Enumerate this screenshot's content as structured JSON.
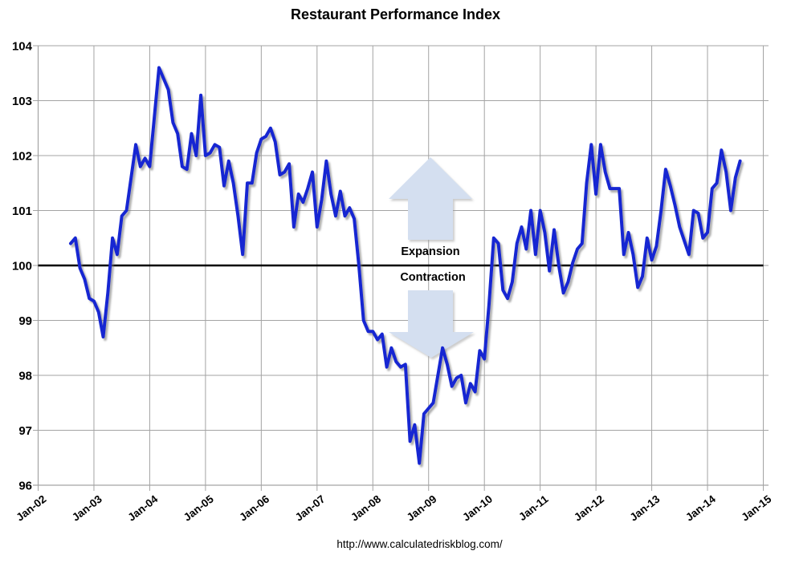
{
  "chart_data": {
    "type": "line",
    "title": "Restaurant Performance Index",
    "source_url_text": "http://www.calculatedriskblog.com/",
    "x_tick_labels": [
      "Jan-02",
      "Jan-03",
      "Jan-04",
      "Jan-05",
      "Jan-06",
      "Jan-07",
      "Jan-08",
      "Jan-09",
      "Jan-10",
      "Jan-11",
      "Jan-12",
      "Jan-13",
      "Jan-14",
      "Jan-15"
    ],
    "y_ticks": [
      96,
      97,
      98,
      99,
      100,
      101,
      102,
      103,
      104
    ],
    "ylim": [
      96,
      104
    ],
    "grid": true,
    "legend": "none",
    "reference_line": {
      "value": 100,
      "label_above": "Expansion",
      "label_below": "Contraction"
    },
    "series": [
      {
        "name": "Restaurant Performance Index",
        "start": "2002-08",
        "frequency": "monthly",
        "values": [
          100.4,
          100.5,
          99.95,
          99.75,
          99.4,
          99.35,
          99.15,
          98.7,
          99.5,
          100.5,
          100.2,
          100.9,
          101.0,
          101.6,
          102.2,
          101.8,
          101.95,
          101.8,
          102.7,
          103.6,
          103.4,
          103.2,
          102.6,
          102.4,
          101.8,
          101.75,
          102.4,
          102.0,
          103.1,
          102.0,
          102.05,
          102.2,
          102.15,
          101.45,
          101.9,
          101.5,
          100.9,
          100.2,
          101.5,
          101.5,
          102.05,
          102.3,
          102.35,
          102.5,
          102.25,
          101.65,
          101.7,
          101.85,
          100.7,
          101.3,
          101.15,
          101.4,
          101.7,
          100.7,
          101.2,
          101.9,
          101.3,
          100.9,
          101.35,
          100.9,
          101.05,
          100.85,
          100.0,
          99.0,
          98.8,
          98.8,
          98.65,
          98.75,
          98.15,
          98.5,
          98.25,
          98.15,
          98.2,
          96.8,
          97.1,
          96.4,
          97.3,
          97.4,
          97.5,
          98.0,
          98.5,
          98.2,
          97.8,
          97.95,
          98.0,
          97.5,
          97.85,
          97.7,
          98.45,
          98.3,
          99.3,
          100.5,
          100.4,
          99.55,
          99.4,
          99.7,
          100.4,
          100.7,
          100.3,
          101.0,
          100.2,
          101.0,
          100.6,
          99.9,
          100.65,
          100.0,
          99.5,
          99.7,
          100.05,
          100.3,
          100.4,
          101.5,
          102.2,
          101.3,
          102.2,
          101.7,
          101.4,
          101.4,
          101.4,
          100.2,
          100.6,
          100.2,
          99.6,
          99.8,
          100.5,
          100.1,
          100.35,
          101.0,
          101.75,
          101.45,
          101.1,
          100.7,
          100.45,
          100.2,
          101.0,
          100.95,
          100.5,
          100.6,
          101.4,
          101.5,
          102.1,
          101.7,
          101.0,
          101.6,
          101.9
        ]
      }
    ],
    "colors": {
      "line": "#1527d2",
      "arrow_fill": "#d4dff0",
      "gridline": "#a3a3a3",
      "reference_line": "#000000",
      "text": "#000000"
    }
  }
}
